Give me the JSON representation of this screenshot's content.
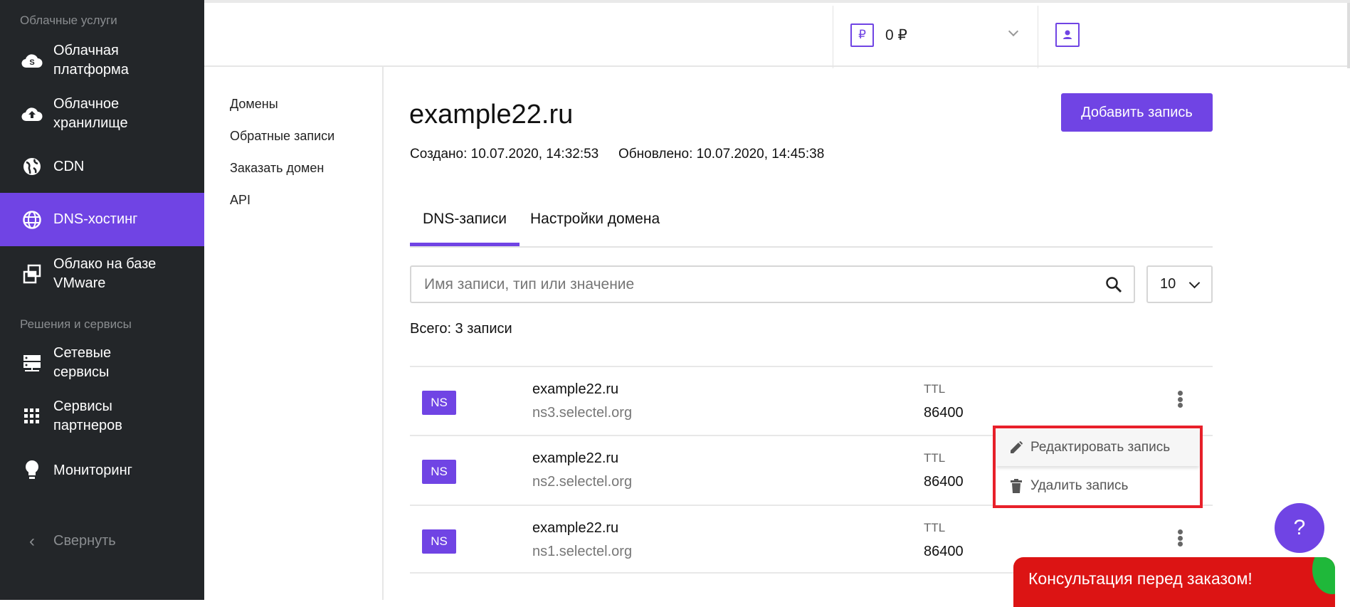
{
  "sidebar": {
    "section_cloud": "Облачные услуги",
    "section_solutions": "Решения и сервисы",
    "items": [
      {
        "label1": "Облачная",
        "label2": "платформа",
        "icon": "cloud-s-icon"
      },
      {
        "label1": "Облачное",
        "label2": "хранилище",
        "icon": "cloud-upload-icon"
      },
      {
        "label1": "CDN",
        "icon": "globe-icon"
      },
      {
        "label1": "DNS-хостинг",
        "icon": "web-icon",
        "active": true
      },
      {
        "label1": "Облако на базе",
        "label2": "VMware",
        "icon": "vmware-icon"
      },
      {
        "label1": "Сетевые",
        "label2": "сервисы",
        "icon": "server-icon"
      },
      {
        "label1": "Сервисы",
        "label2": "партнеров",
        "icon": "apps-grid-icon"
      },
      {
        "label1": "Мониторинг",
        "icon": "lightbulb-icon"
      }
    ],
    "collapse": "Свернуть"
  },
  "topbar": {
    "balance": "0 ₽",
    "currency_icon": "₽"
  },
  "subnav": [
    "Домены",
    "Обратные записи",
    "Заказать домен",
    "API"
  ],
  "main": {
    "title": "example22.ru",
    "add_button": "Добавить запись",
    "created": "Создано: 10.07.2020, 14:32:53",
    "updated": "Обновлено: 10.07.2020, 14:45:38",
    "tabs": [
      "DNS-записи",
      "Настройки домена"
    ],
    "search_placeholder": "Имя записи, тип или значение",
    "per_page": "10",
    "total": "Всего: 3 записи",
    "records": [
      {
        "type": "NS",
        "name": "example22.ru",
        "value": "ns3.selectel.org",
        "ttl_label": "TTL",
        "ttl": "86400"
      },
      {
        "type": "NS",
        "name": "example22.ru",
        "value": "ns2.selectel.org",
        "ttl_label": "TTL",
        "ttl": "86400"
      },
      {
        "type": "NS",
        "name": "example22.ru",
        "value": "ns1.selectel.org",
        "ttl_label": "TTL",
        "ttl": "86400"
      }
    ],
    "menu": {
      "edit": "Редактировать запись",
      "delete": "Удалить запись"
    }
  },
  "help": "?",
  "banner": "Консультация перед заказом!",
  "colors": {
    "accent": "#7044e4",
    "sidebar": "#232629",
    "highlight": "#e8202a",
    "banner": "#dc1414"
  }
}
